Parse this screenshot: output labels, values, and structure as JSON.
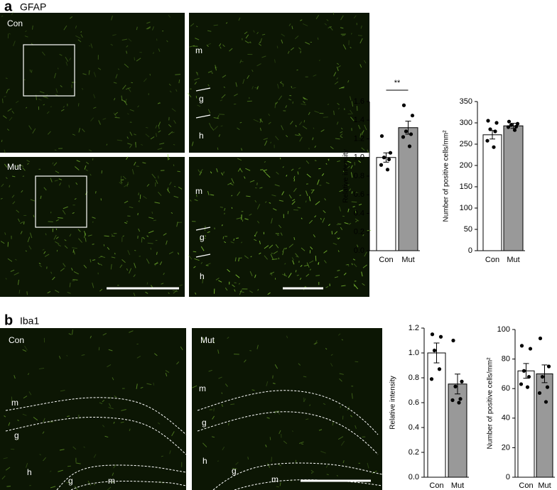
{
  "panels": [
    {
      "label": "a",
      "title": "GFAP",
      "images": [
        {
          "label": "Con"
        },
        {
          "regions": [
            "m",
            "g",
            "h"
          ]
        },
        {
          "label": "Mut"
        },
        {
          "regions": [
            "m",
            "g",
            "h"
          ]
        }
      ]
    },
    {
      "label": "b",
      "title": "Iba1",
      "images": [
        {
          "label": "Con",
          "regions": [
            "m",
            "g",
            "h",
            "g",
            "m"
          ]
        },
        {
          "label": "Mut",
          "regions": [
            "m",
            "g",
            "h",
            "g",
            "m"
          ]
        }
      ]
    }
  ],
  "chart_data": [
    {
      "type": "bar",
      "ylabel": "Relative intensity",
      "categories": [
        "Con",
        "Mut"
      ],
      "colors": [
        "#ffffff",
        "#999999"
      ],
      "values": [
        1.0,
        1.32
      ],
      "errors": [
        0.05,
        0.07
      ],
      "points": [
        [
          1.23,
          1.05,
          1.0,
          0.98,
          0.92,
          0.87
        ],
        [
          1.56,
          1.45,
          1.28,
          1.25,
          1.22,
          1.12
        ]
      ],
      "annotation": "**",
      "ylim": [
        0,
        1.6
      ],
      "yticks": [
        {
          "value": 0,
          "label": "0.0"
        },
        0.2,
        0.4,
        0.6,
        0.8,
        {
          "value": 1,
          "label": "1.0"
        },
        1.2,
        1.4,
        1.6
      ]
    },
    {
      "type": "bar",
      "ylabel": "Number of positive cells/mm²",
      "categories": [
        "Con",
        "Mut"
      ],
      "colors": [
        "#ffffff",
        "#999999"
      ],
      "values": [
        272,
        293
      ],
      "errors": [
        10,
        6
      ],
      "points": [
        [
          305,
          300,
          285,
          280,
          258,
          243
        ],
        [
          303,
          298,
          295,
          291,
          290,
          283
        ]
      ],
      "ylim": [
        0,
        350
      ],
      "yticks": [
        0,
        50,
        100,
        150,
        200,
        250,
        300,
        350
      ]
    },
    {
      "type": "bar",
      "ylabel": "Relative intensity",
      "categories": [
        "Con",
        "Mut"
      ],
      "colors": [
        "#ffffff",
        "#999999"
      ],
      "values": [
        1.0,
        0.75
      ],
      "errors": [
        0.08,
        0.08
      ],
      "points": [
        [
          1.15,
          1.13,
          1.02,
          0.87,
          0.79
        ],
        [
          1.1,
          0.77,
          0.73,
          0.63,
          0.62,
          0.6
        ]
      ],
      "ylim": [
        0,
        1.2
      ],
      "yticks": [
        {
          "value": 0,
          "label": "0.0"
        },
        0.2,
        0.4,
        0.6,
        0.8,
        {
          "value": 1,
          "label": "1.0"
        },
        1.2
      ]
    },
    {
      "type": "bar",
      "ylabel": "Number of positive cells/mm²",
      "categories": [
        "Con",
        "Mut"
      ],
      "colors": [
        "#ffffff",
        "#999999"
      ],
      "values": [
        72,
        70
      ],
      "errors": [
        5,
        6
      ],
      "points": [
        [
          89,
          87,
          72,
          68,
          63,
          61
        ],
        [
          94,
          75,
          68,
          61,
          57,
          51
        ]
      ],
      "ylim": [
        0,
        100
      ],
      "yticks": [
        0,
        20,
        40,
        60,
        80,
        100
      ]
    }
  ]
}
